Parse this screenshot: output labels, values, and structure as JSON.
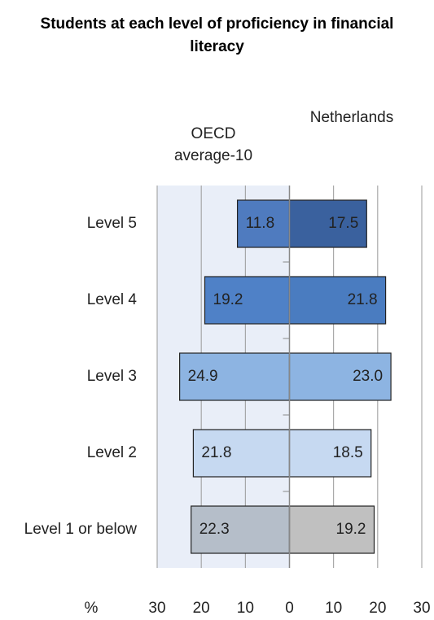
{
  "chart_data": {
    "type": "butterfly-bar",
    "title": "Students at each level of proficiency in financial literacy",
    "categories": [
      "Level 5",
      "Level 4",
      "Level 3",
      "Level 2",
      "Level 1 or below"
    ],
    "series": [
      {
        "name": "OECD average-10",
        "side": "left",
        "values": [
          11.8,
          19.2,
          24.9,
          21.8,
          22.3
        ],
        "colors": [
          "#4f7bbf",
          "#4f81c7",
          "#8db4e2",
          "#c6d9f1",
          "#b5bec9"
        ],
        "label_colors": [
          "#ffffff",
          "#1a1a1a",
          "#1a1a1a",
          "#1a1a1a",
          "#1a1a1a"
        ]
      },
      {
        "name": "Netherlands",
        "side": "right",
        "values": [
          17.5,
          21.8,
          23.0,
          18.5,
          19.2
        ],
        "value_labels": [
          "17.5",
          "21.8",
          "23.0",
          "18.5",
          "19.2"
        ],
        "colors": [
          "#3a619e",
          "#4a7cc0",
          "#8db4e2",
          "#c6d9f1",
          "#c0c0c0"
        ],
        "label_colors": [
          "#ffffff",
          "#1a1a1a",
          "#1a1a1a",
          "#1a1a1a",
          "#1a1a1a"
        ]
      }
    ],
    "x_label": "%",
    "xlim": [
      -30,
      30
    ],
    "xticks": [
      {
        "value": -30,
        "label": "30"
      },
      {
        "value": -20,
        "label": "20"
      },
      {
        "value": -10,
        "label": "10"
      },
      0,
      10,
      20,
      30
    ],
    "grid": true,
    "left_background": "#e9eef8"
  }
}
